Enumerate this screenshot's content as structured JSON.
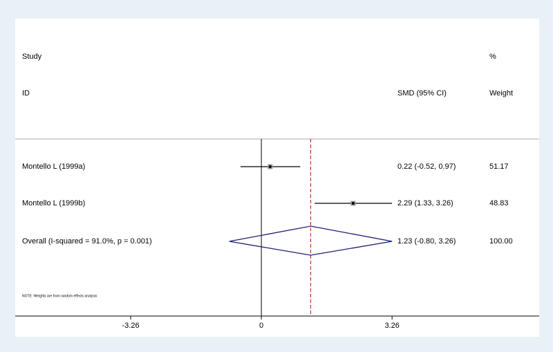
{
  "chart_data": {
    "type": "forest",
    "headers": {
      "study": "Study",
      "id": "ID",
      "effect": "SMD (95% CI)",
      "pct": "%",
      "weight": "Weight"
    },
    "studies": [
      {
        "name": "Montello L (1999a)",
        "value": 0.22,
        "lower": -0.52,
        "upper": 0.97,
        "label": "0.22 (-0.52, 0.97)",
        "weight": 51.17
      },
      {
        "name": "Montello L (1999b)",
        "value": 2.29,
        "lower": 1.33,
        "upper": 3.26,
        "label": "2.29 (1.33, 3.26)",
        "weight": 48.83
      }
    ],
    "overall": {
      "name": "Overall  (I-squared = 91.0%, p = 0.001)",
      "value": 1.23,
      "lower": -0.8,
      "upper": 3.26,
      "label": "1.23 (-0.80, 3.26)",
      "weight": {
        "value": 100,
        "label": "100.00"
      },
      "color": "#1c1c78"
    },
    "note": "NOTE: Weights are from random effects analysis",
    "xlim": [
      -6.14,
      6.93
    ],
    "xticks": [
      -3.26,
      0,
      3.26
    ],
    "ref_color": "#9b1c1c"
  }
}
